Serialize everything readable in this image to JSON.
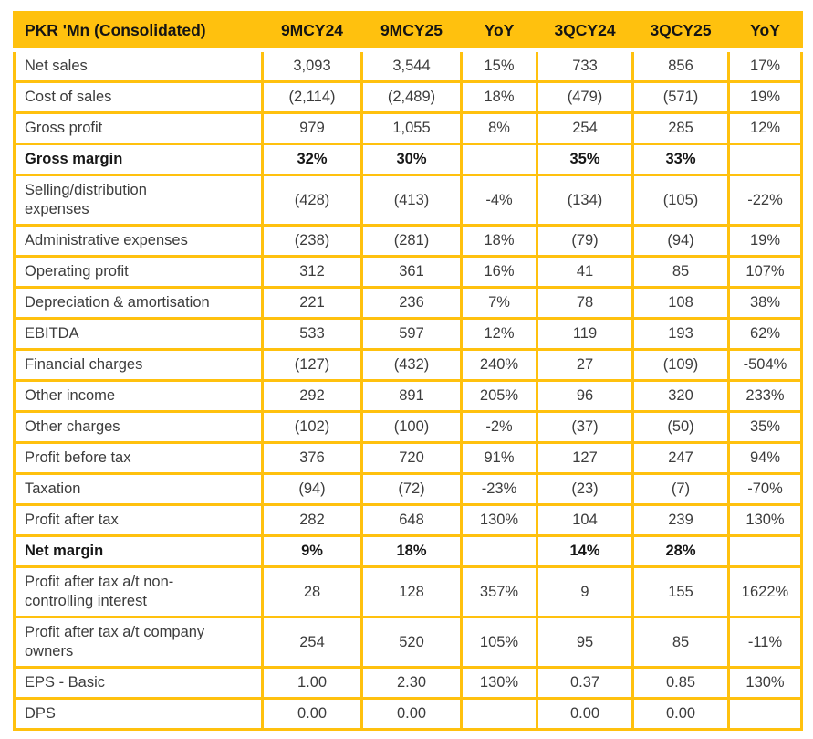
{
  "colors": {
    "accent": "#FFC10E",
    "header_text": "#141414",
    "body_text": "#3C3C3C",
    "background": "#FFFFFF"
  },
  "chart_data": {
    "type": "table",
    "title": "PKR 'Mn (Consolidated)",
    "columns": [
      "PKR 'Mn (Consolidated)",
      "9MCY24",
      "9MCY25",
      "YoY",
      "3QCY24",
      "3QCY25",
      "YoY"
    ],
    "rows": [
      {
        "label": "Net sales",
        "bold": false,
        "values": [
          "3,093",
          "3,544",
          "15%",
          "733",
          "856",
          "17%"
        ]
      },
      {
        "label": "Cost of sales",
        "bold": false,
        "values": [
          "(2,114)",
          "(2,489)",
          "18%",
          "(479)",
          "(571)",
          "19%"
        ]
      },
      {
        "label": "Gross profit",
        "bold": false,
        "values": [
          "979",
          "1,055",
          "8%",
          "254",
          "285",
          "12%"
        ]
      },
      {
        "label": "Gross margin",
        "bold": true,
        "values": [
          "32%",
          "30%",
          "",
          "35%",
          "33%",
          ""
        ]
      },
      {
        "label": "Selling/distribution expenses",
        "bold": false,
        "values": [
          "(428)",
          "(413)",
          "-4%",
          "(134)",
          "(105)",
          "-22%"
        ]
      },
      {
        "label": "Administrative expenses",
        "bold": false,
        "values": [
          "(238)",
          "(281)",
          "18%",
          "(79)",
          "(94)",
          "19%"
        ]
      },
      {
        "label": "Operating profit",
        "bold": false,
        "values": [
          "312",
          "361",
          "16%",
          "41",
          "85",
          "107%"
        ]
      },
      {
        "label": "Depreciation & amortisation",
        "bold": false,
        "values": [
          "221",
          "236",
          "7%",
          "78",
          "108",
          "38%"
        ]
      },
      {
        "label": "EBITDA",
        "bold": false,
        "values": [
          "533",
          "597",
          "12%",
          "119",
          "193",
          "62%"
        ]
      },
      {
        "label": "Financial charges",
        "bold": false,
        "values": [
          "(127)",
          "(432)",
          "240%",
          "27",
          "(109)",
          "-504%"
        ]
      },
      {
        "label": "Other income",
        "bold": false,
        "values": [
          "292",
          "891",
          "205%",
          "96",
          "320",
          "233%"
        ]
      },
      {
        "label": "Other charges",
        "bold": false,
        "values": [
          "(102)",
          "(100)",
          "-2%",
          "(37)",
          "(50)",
          "35%"
        ]
      },
      {
        "label": "Profit before tax",
        "bold": false,
        "values": [
          "376",
          "720",
          "91%",
          "127",
          "247",
          "94%"
        ]
      },
      {
        "label": "Taxation",
        "bold": false,
        "values": [
          "(94)",
          "(72)",
          "-23%",
          "(23)",
          "(7)",
          "-70%"
        ]
      },
      {
        "label": "Profit after tax",
        "bold": false,
        "values": [
          "282",
          "648",
          "130%",
          "104",
          "239",
          "130%"
        ]
      },
      {
        "label": "Net margin",
        "bold": true,
        "values": [
          "9%",
          "18%",
          "",
          "14%",
          "28%",
          ""
        ]
      },
      {
        "label": "Profit after tax a/t non-controlling interest",
        "bold": false,
        "values": [
          "28",
          "128",
          "357%",
          "9",
          "155",
          "1622%"
        ]
      },
      {
        "label": "Profit after tax a/t company owners",
        "bold": false,
        "values": [
          "254",
          "520",
          "105%",
          "95",
          "85",
          "-11%"
        ]
      },
      {
        "label": "EPS - Basic",
        "bold": false,
        "values": [
          "1.00",
          "2.30",
          "130%",
          "0.37",
          "0.85",
          "130%"
        ]
      },
      {
        "label": "DPS",
        "bold": false,
        "values": [
          "0.00",
          "0.00",
          "",
          "0.00",
          "0.00",
          ""
        ]
      }
    ]
  }
}
